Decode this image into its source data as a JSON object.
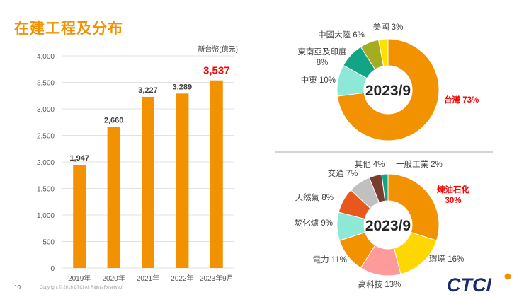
{
  "page": {
    "title": "在建工程及分布",
    "page_number": "10",
    "copyright": "Copyright © 2016 CTCI All Rights Reserved.",
    "logo_text": "CTCI",
    "colors": {
      "accent": "#f39200",
      "highlight": "#ff0000",
      "text": "#404040",
      "grid": "#d9d9d9"
    }
  },
  "chart_data": [
    {
      "type": "bar",
      "unit_label": "新台幣(億元)",
      "categories": [
        "2019年",
        "2020年",
        "2021年",
        "2022年",
        "2023年9月"
      ],
      "values": [
        1947,
        2660,
        3227,
        3289,
        3537
      ],
      "value_labels": [
        "1,947",
        "2,660",
        "3,227",
        "3,289",
        "3,537"
      ],
      "highlight_last": true,
      "ylim": [
        0,
        4000
      ],
      "yticks": [
        0,
        500,
        1000,
        1500,
        2000,
        2500,
        3000,
        3500,
        4000
      ],
      "ytick_labels": [
        "0",
        "500",
        "1,000",
        "1,500",
        "2,000",
        "2,500",
        "3,000",
        "3,500",
        "4,000"
      ],
      "bar_color": "#f39200",
      "grid": true
    },
    {
      "type": "pie",
      "center_label": "2023/9",
      "slices": [
        {
          "label": "台灣",
          "pct_label": "73%",
          "value": 73,
          "color": "#f39200",
          "highlight": true
        },
        {
          "label": "中東",
          "pct_label": "10%",
          "value": 10,
          "color": "#8ee8d8"
        },
        {
          "label": "東南亞及印度",
          "pct_label": "8%",
          "value": 8,
          "color": "#12a585"
        },
        {
          "label": "中國大陸",
          "pct_label": "6%",
          "value": 6,
          "color": "#a3ad1f"
        },
        {
          "label": "美國",
          "pct_label": "3%",
          "value": 3,
          "color": "#ffe100"
        }
      ]
    },
    {
      "type": "pie",
      "center_label": "2023/9",
      "slices": [
        {
          "label": "煉油石化",
          "pct_label": "30%",
          "value": 30,
          "color": "#f39200",
          "highlight": true
        },
        {
          "label": "環境",
          "pct_label": "16%",
          "value": 16,
          "color": "#ffd700"
        },
        {
          "label": "高科技",
          "pct_label": "13%",
          "value": 13,
          "color": "#ff9a9a"
        },
        {
          "label": "電力",
          "pct_label": "11%",
          "value": 11,
          "color": "#f39200"
        },
        {
          "label": "焚化爐",
          "pct_label": "9%",
          "value": 9,
          "color": "#8ee8d8"
        },
        {
          "label": "天然氣",
          "pct_label": "8%",
          "value": 8,
          "color": "#e8581c"
        },
        {
          "label": "交通",
          "pct_label": "7%",
          "value": 7,
          "color": "#c0c0c0"
        },
        {
          "label": "其他",
          "pct_label": "4%",
          "value": 4,
          "color": "#7a3e2e"
        },
        {
          "label": "一般工業",
          "pct_label": "2%",
          "value": 2,
          "color": "#12a585"
        }
      ]
    }
  ]
}
